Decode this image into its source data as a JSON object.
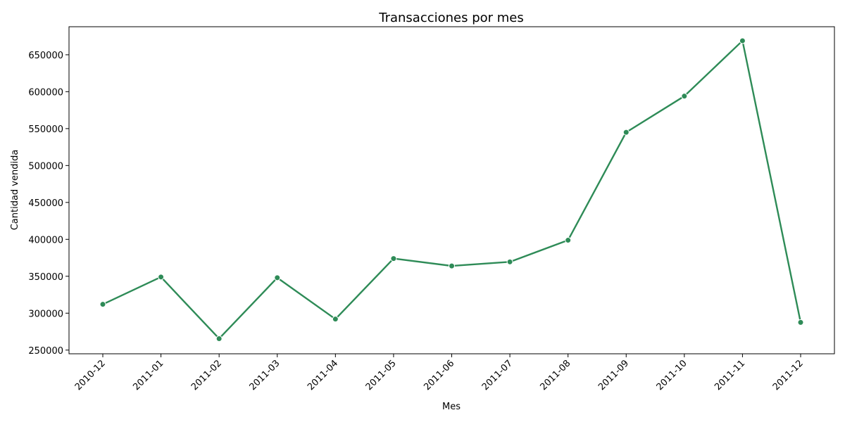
{
  "chart_data": {
    "type": "line",
    "title": "Transacciones por mes",
    "xlabel": "Mes",
    "ylabel": "Cantidad vendida",
    "categories": [
      "2010-12",
      "2011-01",
      "2011-02",
      "2011-03",
      "2011-04",
      "2011-05",
      "2011-06",
      "2011-07",
      "2011-08",
      "2011-09",
      "2011-10",
      "2011-11",
      "2011-12"
    ],
    "series": [
      {
        "values": [
          312000,
          349000,
          265500,
          348000,
          292000,
          374000,
          364000,
          369500,
          398800,
          545000,
          594000,
          669000,
          287500
        ],
        "color": "#2e8b57"
      }
    ],
    "ylim": [
      245000,
      688000
    ],
    "yticks": [
      250000,
      300000,
      350000,
      400000,
      450000,
      500000,
      550000,
      600000,
      650000
    ],
    "grid": false,
    "x_tick_rotation": 45
  }
}
